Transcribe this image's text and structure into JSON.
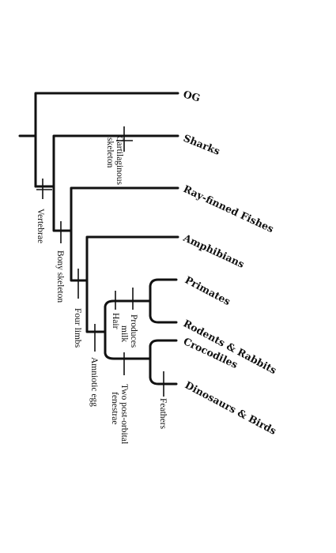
{
  "diagram": {
    "taxa": [
      "OG",
      "Sharks",
      "Ray-finned Fishes",
      "Amphibians",
      "Primates",
      "Rodents & Rabbits",
      "Crocodiles",
      "Dinosaurs & Birds"
    ],
    "traits": [
      [
        "Vertebrae"
      ],
      [
        "Cartilaginous",
        "skeleton"
      ],
      [
        "Bony skeleton"
      ],
      [
        "Four limbs"
      ],
      [
        "Amniotic egg"
      ],
      [
        "Hair"
      ],
      [
        "Produces",
        "milk"
      ],
      [
        "Two post-orbital",
        "fenestrae"
      ],
      [
        "Feathers"
      ]
    ]
  }
}
